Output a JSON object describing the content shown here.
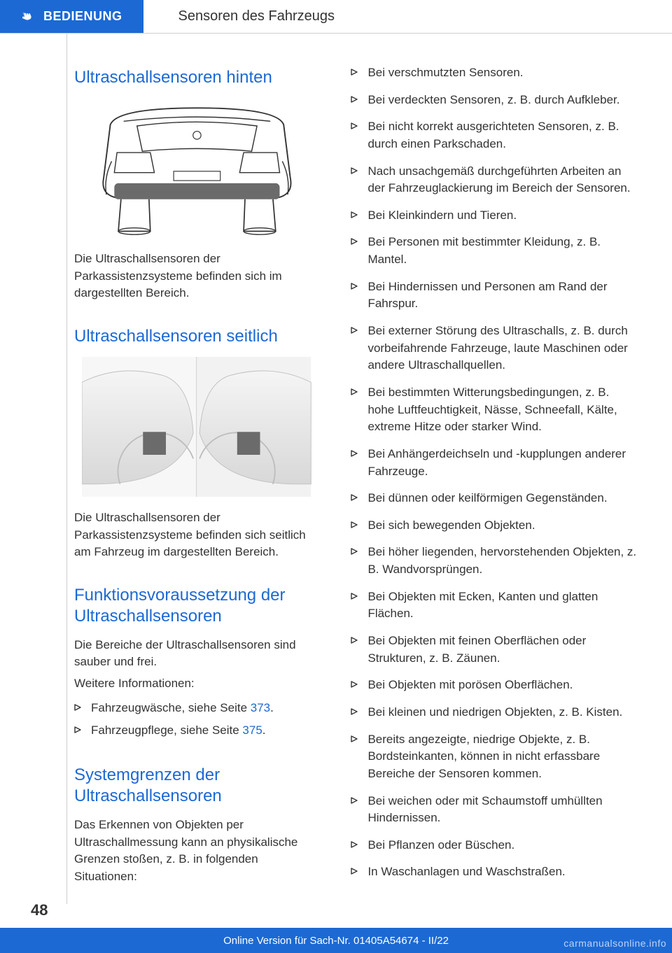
{
  "colors": {
    "primary": "#1c69d4",
    "text": "#333333",
    "border": "#cfcfcf",
    "background": "#ffffff",
    "sensor_highlight": "#6b6b6b"
  },
  "typography": {
    "body_fontsize": 17,
    "h2_fontsize": 24,
    "header_fontsize": 18,
    "pagenum_fontsize": 22,
    "footer_fontsize": 15
  },
  "header": {
    "section": "BEDIENUNG",
    "title": "Sensoren des Fahrzeugs"
  },
  "left": {
    "h1": "Ultraschallsensoren hinten",
    "p1": "Die Ultraschallsensoren der Parkassistenzsysteme befinden sich im dargestellten Bereich.",
    "h2": "Ultraschallsensoren seitlich",
    "p2": "Die Ultraschallsensoren der Parkassistenzsysteme befinden sich seitlich am Fahrzeug im dargestellten Bereich.",
    "h3": "Funktionsvoraussetzung der Ultraschallsensoren",
    "p3": "Die Bereiche der Ultraschallsensoren sind sauber und frei.",
    "p4": "Weitere Informationen:",
    "bullets1": [
      {
        "text": "Fahrzeugwäsche, siehe Seite ",
        "link": "373",
        "suffix": "."
      },
      {
        "text": "Fahrzeugpflege, siehe Seite ",
        "link": "375",
        "suffix": "."
      }
    ],
    "h4": "Systemgrenzen der Ultraschallsensoren",
    "p5": "Das Erkennen von Objekten per Ultraschallmessung kann an physikalische Grenzen stoßen, z. B. in folgenden Situationen:"
  },
  "right": {
    "bullets": [
      "Bei verschmutzten Sensoren.",
      "Bei verdeckten Sensoren, z. B. durch Aufkleber.",
      "Bei nicht korrekt ausgerichteten Sensoren, z. B. durch einen Parkschaden.",
      "Nach unsachgemäß durchgeführten Arbeiten an der Fahrzeuglackierung im Bereich der Sensoren.",
      "Bei Kleinkindern und Tieren.",
      "Bei Personen mit bestimmter Kleidung, z. B. Mantel.",
      "Bei Hindernissen und Personen am Rand der Fahrspur.",
      "Bei externer Störung des Ultraschalls, z. B. durch vorbeifahrende Fahrzeuge, laute Maschinen oder andere Ultraschallquellen.",
      "Bei bestimmten Witterungsbedingungen, z. B. hohe Luftfeuchtigkeit, Nässe, Schneefall, Kälte, extreme Hitze oder starker Wind.",
      "Bei Anhängerdeichseln und -kupplungen anderer Fahrzeuge.",
      "Bei dünnen oder keilförmigen Gegenständen.",
      "Bei sich bewegenden Objekten.",
      "Bei höher liegenden, hervorstehenden Objekten, z. B. Wandvorsprüngen.",
      "Bei Objekten mit Ecken, Kanten und glatten Flächen.",
      "Bei Objekten mit feinen Oberflächen oder Strukturen, z. B. Zäunen.",
      "Bei Objekten mit porösen Oberflächen.",
      "Bei kleinen und niedrigen Objekten, z. B. Kisten.",
      "Bereits angezeigte, niedrige Objekte, z. B. Bordsteinkanten, können in nicht erfassbare Bereiche der Sensoren kommen.",
      "Bei weichen oder mit Schaumstoff umhüllten Hindernissen.",
      "Bei Pflanzen oder Büschen.",
      "In Waschanlagen und Waschstraßen."
    ]
  },
  "page_number": "48",
  "footer": "Online Version für Sach-Nr. 01405A54674 - II/22",
  "watermark": "carmanualsonline.info"
}
